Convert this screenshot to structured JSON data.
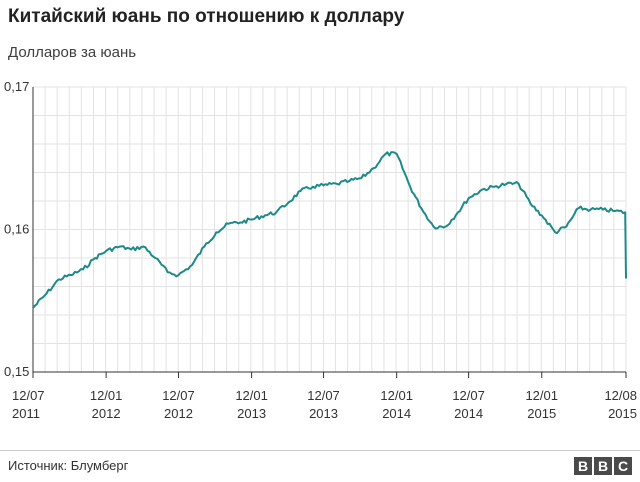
{
  "chart_data": {
    "type": "line",
    "title": "Китайский юань по отношению к доллару",
    "subtitle": "Долларов за юань",
    "ylim": [
      0.15,
      0.17
    ],
    "y_ticks": [
      "0,17",
      "0,16",
      "0,15"
    ],
    "x_tick_labels": [
      {
        "month": "12/07",
        "year": "2011"
      },
      {
        "month": "12/01",
        "year": "2012"
      },
      {
        "month": "12/07",
        "year": "2012"
      },
      {
        "month": "12/01",
        "year": "2013"
      },
      {
        "month": "12/07",
        "year": "2013"
      },
      {
        "month": "12/01",
        "year": "2014"
      },
      {
        "month": "12/07",
        "year": "2014"
      },
      {
        "month": "12/01",
        "year": "2015"
      },
      {
        "month": "12/08",
        "year": "2015"
      }
    ],
    "grid": true,
    "line_color": "#1d8a8a",
    "series": [
      {
        "name": "",
        "x": [
          "2011-07-12",
          "2011-08-15",
          "2011-09-15",
          "2011-10-15",
          "2011-11-15",
          "2011-12-15",
          "2012-01-12",
          "2012-02-15",
          "2012-03-15",
          "2012-04-15",
          "2012-05-15",
          "2012-06-15",
          "2012-07-12",
          "2012-08-15",
          "2012-09-15",
          "2012-10-15",
          "2012-11-15",
          "2012-12-15",
          "2013-01-12",
          "2013-02-15",
          "2013-03-15",
          "2013-04-15",
          "2013-05-15",
          "2013-06-15",
          "2013-07-12",
          "2013-08-15",
          "2013-09-15",
          "2013-10-15",
          "2013-11-15",
          "2013-12-15",
          "2014-01-12",
          "2014-02-15",
          "2014-03-15",
          "2014-04-15",
          "2014-05-15",
          "2014-06-15",
          "2014-07-12",
          "2014-08-15",
          "2014-09-15",
          "2014-10-15",
          "2014-11-15",
          "2014-12-15",
          "2015-01-12",
          "2015-02-15",
          "2015-03-15",
          "2015-04-15",
          "2015-05-15",
          "2015-06-15",
          "2015-07-15",
          "2015-08-10",
          "2015-08-12"
        ],
        "values": [
          0.1545,
          0.1555,
          0.1565,
          0.1568,
          0.1572,
          0.158,
          0.1585,
          0.1588,
          0.1586,
          0.1588,
          0.158,
          0.157,
          0.1568,
          0.1575,
          0.1588,
          0.1598,
          0.1604,
          0.1605,
          0.1607,
          0.161,
          0.1612,
          0.1619,
          0.1627,
          0.163,
          0.1631,
          0.1632,
          0.1634,
          0.1636,
          0.1643,
          0.1653,
          0.1653,
          0.163,
          0.1615,
          0.1602,
          0.1602,
          0.1612,
          0.1622,
          0.1628,
          0.163,
          0.1632,
          0.1632,
          0.1618,
          0.161,
          0.1598,
          0.1602,
          0.1615,
          0.1614,
          0.1614,
          0.1613,
          0.1612,
          0.1566
        ]
      }
    ]
  },
  "source": "Источник: Блумберг",
  "logo": [
    "B",
    "B",
    "C"
  ]
}
